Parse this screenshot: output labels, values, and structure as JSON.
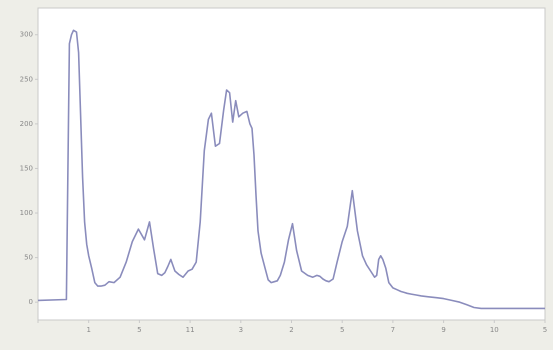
{
  "chart_data": {
    "type": "line",
    "title": "",
    "xlabel": "",
    "ylabel": "",
    "grid": false,
    "legend": "none",
    "colors": {
      "line": "#8a8cbc",
      "plot_bg": "#ffffff",
      "frame_bg": "#eeeee8",
      "axis": "#c9c9c9",
      "tick_text": "#888888"
    },
    "x_ticks": [
      {
        "value": 0,
        "label": ""
      },
      {
        "value": 10,
        "label": "1"
      },
      {
        "value": 20,
        "label": "5"
      },
      {
        "value": 30,
        "label": "11"
      },
      {
        "value": 40,
        "label": "3"
      },
      {
        "value": 50,
        "label": "2"
      },
      {
        "value": 60,
        "label": "5"
      },
      {
        "value": 70,
        "label": "7"
      },
      {
        "value": 80,
        "label": "9"
      },
      {
        "value": 90,
        "label": "10"
      },
      {
        "value": 100,
        "label": "5"
      }
    ],
    "y_ticks": [
      {
        "value": 0,
        "label": "0"
      },
      {
        "value": 50,
        "label": "50"
      },
      {
        "value": 100,
        "label": "100"
      },
      {
        "value": 150,
        "label": "150"
      },
      {
        "value": 200,
        "label": "200"
      },
      {
        "value": 250,
        "label": "250"
      },
      {
        "value": 300,
        "label": "300"
      }
    ],
    "xlim": [
      0,
      100
    ],
    "ylim": [
      -20,
      330
    ],
    "series": [
      {
        "x": [
          0,
          5.6,
          5.8,
          6.2,
          6.6,
          7.0,
          7.6,
          8.0,
          8.4,
          8.8,
          9.2,
          9.6,
          10.0,
          10.6,
          11.2,
          11.8,
          12.4,
          13.2,
          14.0,
          15.0,
          16.2,
          17.4,
          18.6,
          19.8,
          21.0,
          22.0,
          22.8,
          23.6,
          24.4,
          25.0,
          25.6,
          26.2,
          27.0,
          27.8,
          28.6,
          29.6,
          30.4,
          31.2,
          32.0,
          32.8,
          33.6,
          34.2,
          35.0,
          35.8,
          36.6,
          37.2,
          37.8,
          38.4,
          39.0,
          39.6,
          40.4,
          41.2,
          41.8,
          42.2,
          42.6,
          43.0,
          43.4,
          44.0,
          44.8,
          45.4,
          46.0,
          46.6,
          47.2,
          47.8,
          48.6,
          49.4,
          50.2,
          51.0,
          52.0,
          53.2,
          54.2,
          55.0,
          55.6,
          56.2,
          56.8,
          57.4,
          58.2,
          59.0,
          60.0,
          61.0,
          62.0,
          63.0,
          64.0,
          64.8,
          65.6,
          66.4,
          66.8,
          67.2,
          67.6,
          68.0,
          68.6,
          69.2,
          70.0,
          70.8,
          71.6,
          72.2,
          72.8,
          73.6,
          74.6,
          75.6,
          77.0,
          78.6,
          80.0,
          81.6,
          83.2,
          84.6,
          86.0,
          87.4,
          88.4,
          89.2,
          90.2,
          91.6,
          93.2,
          95.0,
          97.0,
          99.0,
          100.0
        ],
        "y": [
          2,
          3,
          100,
          290,
          300,
          305,
          303,
          280,
          210,
          140,
          90,
          65,
          52,
          38,
          22,
          18,
          18,
          19,
          23,
          22,
          28,
          45,
          68,
          82,
          70,
          90,
          60,
          32,
          30,
          33,
          40,
          48,
          35,
          31,
          28,
          35,
          37,
          45,
          90,
          170,
          205,
          212,
          175,
          178,
          215,
          238,
          235,
          202,
          226,
          208,
          212,
          214,
          200,
          195,
          165,
          120,
          80,
          55,
          38,
          25,
          22,
          23,
          24,
          30,
          45,
          70,
          88,
          58,
          35,
          30,
          28,
          30,
          29,
          26,
          24,
          23,
          26,
          45,
          68,
          85,
          125,
          80,
          52,
          42,
          35,
          28,
          30,
          48,
          52,
          48,
          38,
          22,
          16,
          14,
          12,
          11,
          10,
          9,
          8,
          7,
          6,
          5,
          4,
          2,
          0,
          -3,
          -6,
          -7,
          -7,
          -7,
          -7,
          -7,
          -7,
          -7,
          -7,
          -7,
          -7
        ]
      }
    ]
  }
}
